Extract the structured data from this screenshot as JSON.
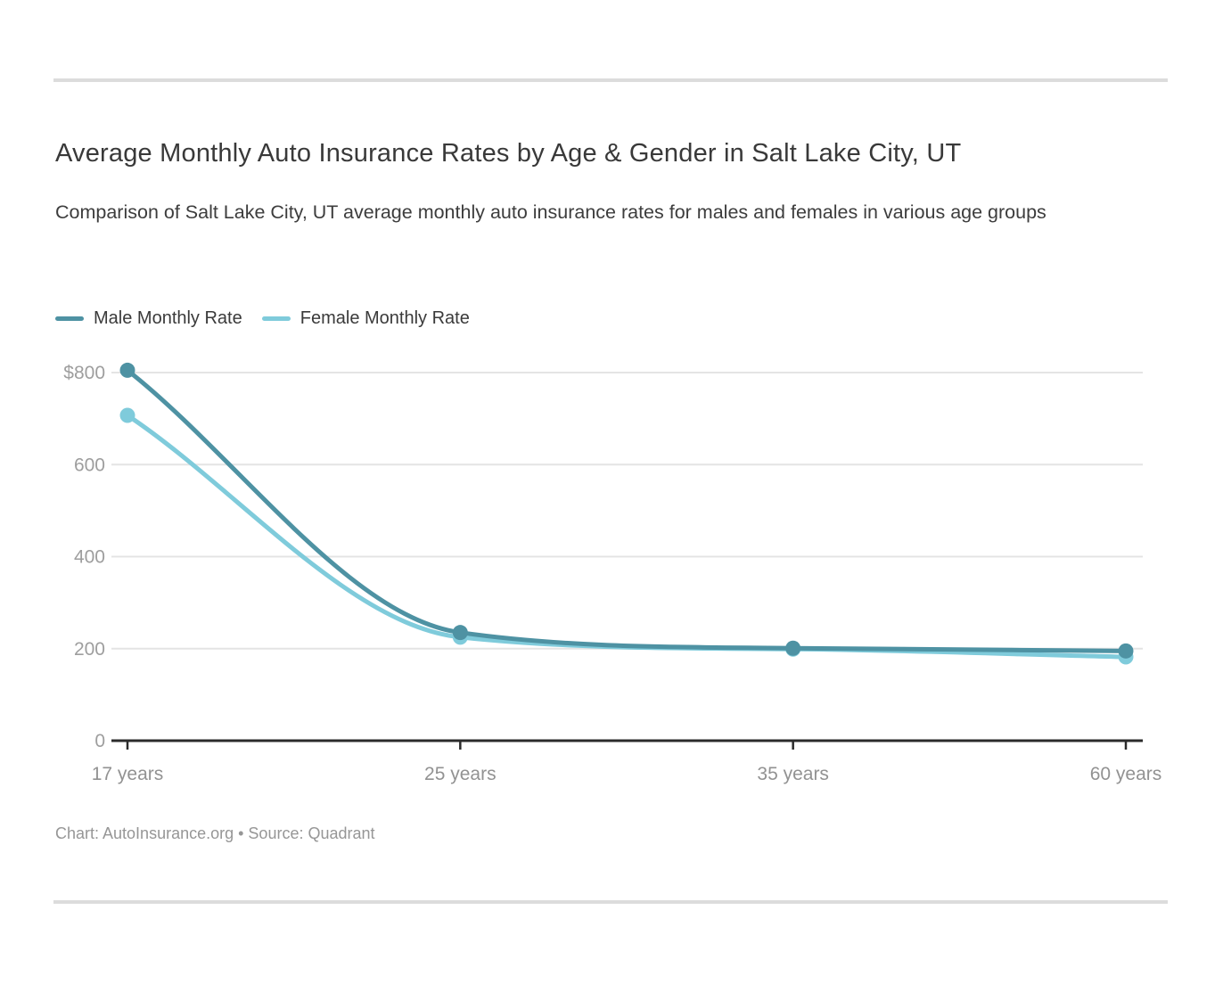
{
  "chart_data": {
    "type": "line",
    "title": "Average Monthly Auto Insurance Rates by Age & Gender in Salt Lake City, UT",
    "subtitle": "Comparison of Salt Lake City, UT average monthly auto insurance rates for males and females in various age groups",
    "caption": "Chart: AutoInsurance.org • Source: Quadrant",
    "categories": [
      "17 years",
      "25 years",
      "35 years",
      "60 years"
    ],
    "series": [
      {
        "name": "Male Monthly Rate",
        "color": "#4e92a3",
        "values": [
          805,
          235,
          201,
          195
        ]
      },
      {
        "name": "Female Monthly Rate",
        "color": "#7fcbdb",
        "values": [
          707,
          225,
          199,
          182
        ]
      }
    ],
    "xlabel": "",
    "ylabel": "",
    "ylim": [
      0,
      800
    ],
    "y_ticks": [
      {
        "value": 800,
        "label": "$800"
      },
      {
        "value": 600,
        "label": "600"
      },
      {
        "value": 400,
        "label": "400"
      },
      {
        "value": 200,
        "label": "200"
      },
      {
        "value": 0,
        "label": "0"
      }
    ],
    "grid": "horizontal",
    "legend_position": "top-left",
    "colors": {
      "gridline": "#e4e4e4",
      "axis": "#2b2b2b",
      "tick_text": "#9e9e9e"
    }
  }
}
